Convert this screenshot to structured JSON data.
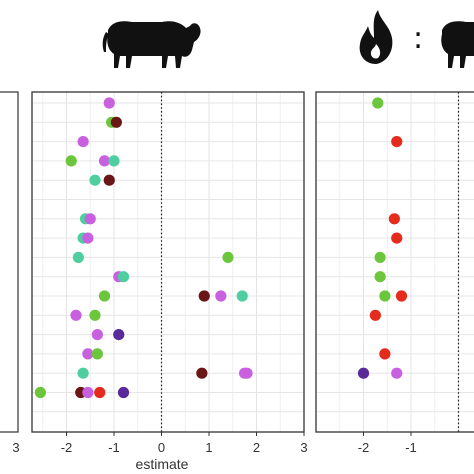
{
  "chart_data": {
    "type": "scatter",
    "xlabel": "estimate",
    "xlim": [
      -3,
      3
    ],
    "x_ticks": [
      "-2",
      "-1",
      "0",
      "1",
      "2",
      "3"
    ],
    "left_panel_tick": "3",
    "reference_line_x": 0,
    "panel_header_separator": ":",
    "n_rows": 17,
    "grid": true,
    "icons": {
      "middle_panel": "cow-icon",
      "right_panel": [
        "fire-icon",
        "cow-icon"
      ]
    },
    "colors": {
      "green": "#6cc63c",
      "teal": "#4fcfa0",
      "purple": "#c860e0",
      "darkred": "#6a1616",
      "red": "#e42b1d",
      "violet": "#5a2a98"
    },
    "panels": [
      {
        "name": "middle",
        "points": [
          {
            "row": 0,
            "x": -1.1,
            "color": "purple"
          },
          {
            "row": 1,
            "x": -1.05,
            "color": "green"
          },
          {
            "row": 1,
            "x": -0.95,
            "color": "darkred"
          },
          {
            "row": 2,
            "x": -1.65,
            "color": "purple"
          },
          {
            "row": 3,
            "x": -1.9,
            "color": "green"
          },
          {
            "row": 3,
            "x": -1.2,
            "color": "purple"
          },
          {
            "row": 3,
            "x": -1.0,
            "color": "teal"
          },
          {
            "row": 4,
            "x": -1.4,
            "color": "teal"
          },
          {
            "row": 4,
            "x": -1.1,
            "color": "darkred"
          },
          {
            "row": 6,
            "x": -1.6,
            "color": "teal"
          },
          {
            "row": 6,
            "x": -1.5,
            "color": "purple"
          },
          {
            "row": 7,
            "x": -1.65,
            "color": "teal"
          },
          {
            "row": 7,
            "x": -1.55,
            "color": "purple"
          },
          {
            "row": 8,
            "x": -1.75,
            "color": "teal"
          },
          {
            "row": 8,
            "x": 1.4,
            "color": "green"
          },
          {
            "row": 9,
            "x": -0.9,
            "color": "purple"
          },
          {
            "row": 9,
            "x": -0.8,
            "color": "teal"
          },
          {
            "row": 10,
            "x": -1.2,
            "color": "green"
          },
          {
            "row": 10,
            "x": 0.9,
            "color": "darkred"
          },
          {
            "row": 10,
            "x": 1.25,
            "color": "purple"
          },
          {
            "row": 10,
            "x": 1.7,
            "color": "teal"
          },
          {
            "row": 11,
            "x": -1.8,
            "color": "purple"
          },
          {
            "row": 11,
            "x": -1.4,
            "color": "green"
          },
          {
            "row": 12,
            "x": -1.35,
            "color": "purple"
          },
          {
            "row": 12,
            "x": -0.9,
            "color": "violet"
          },
          {
            "row": 13,
            "x": -1.55,
            "color": "purple"
          },
          {
            "row": 13,
            "x": -1.35,
            "color": "green"
          },
          {
            "row": 14,
            "x": -1.65,
            "color": "teal"
          },
          {
            "row": 14,
            "x": 0.85,
            "color": "darkred"
          },
          {
            "row": 14,
            "x": 1.75,
            "color": "purple"
          },
          {
            "row": 14,
            "x": 1.8,
            "color": "purple"
          },
          {
            "row": 15,
            "x": -2.55,
            "color": "green"
          },
          {
            "row": 15,
            "x": -1.7,
            "color": "darkred"
          },
          {
            "row": 15,
            "x": -1.55,
            "color": "purple"
          },
          {
            "row": 15,
            "x": -1.3,
            "color": "red"
          },
          {
            "row": 15,
            "x": -0.8,
            "color": "violet"
          }
        ]
      },
      {
        "name": "right",
        "points": [
          {
            "row": 0,
            "x": -1.7,
            "color": "green"
          },
          {
            "row": 2,
            "x": -1.3,
            "color": "red"
          },
          {
            "row": 6,
            "x": -1.35,
            "color": "red"
          },
          {
            "row": 7,
            "x": -1.3,
            "color": "red"
          },
          {
            "row": 8,
            "x": -1.65,
            "color": "green"
          },
          {
            "row": 9,
            "x": -1.65,
            "color": "green"
          },
          {
            "row": 10,
            "x": -1.55,
            "color": "green"
          },
          {
            "row": 10,
            "x": -1.2,
            "color": "red"
          },
          {
            "row": 11,
            "x": -1.75,
            "color": "red"
          },
          {
            "row": 13,
            "x": -1.55,
            "color": "red"
          },
          {
            "row": 14,
            "x": -2.0,
            "color": "violet"
          },
          {
            "row": 14,
            "x": -1.3,
            "color": "purple"
          }
        ]
      }
    ]
  }
}
